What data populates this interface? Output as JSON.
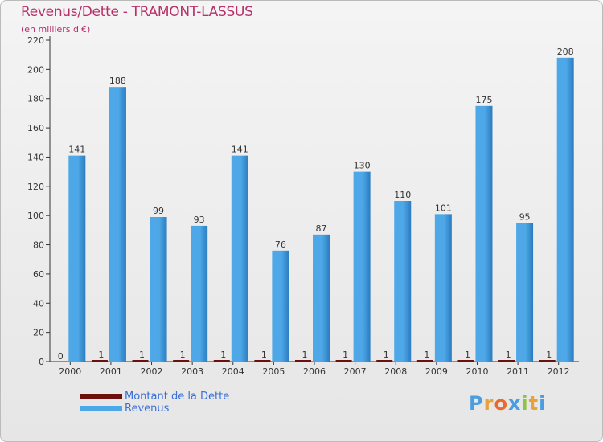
{
  "title": "Revenus/Dette - TRAMONT-LASSUS",
  "subtitle": "(en milliers d'€)",
  "legend": {
    "debt_label": "Montant de la Dette",
    "revenue_label": "Revenus"
  },
  "logo": {
    "text": "Proxiti",
    "letters": [
      "P",
      "r",
      "o",
      "x",
      "i",
      "t",
      "i"
    ],
    "colors": [
      "#4a9ee0",
      "#e8a23a",
      "#e86a2e",
      "#4a9ee0",
      "#8cc63f",
      "#e8a23a",
      "#4a9ee0"
    ]
  },
  "colors": {
    "debt": "#6b0f0f",
    "revenue": "#4ea7e6",
    "revenue_dark": "#2a7cc0",
    "title": "#b8306a",
    "legend_text": "#3a6fd8"
  },
  "chart_data": {
    "type": "bar",
    "title": "Revenus/Dette - TRAMONT-LASSUS",
    "ylabel": "(en milliers d'€)",
    "xlabel": "",
    "categories": [
      "2000",
      "2001",
      "2002",
      "2003",
      "2004",
      "2005",
      "2006",
      "2007",
      "2008",
      "2009",
      "2010",
      "2011",
      "2012"
    ],
    "series": [
      {
        "name": "Montant de la Dette",
        "values": [
          0,
          1,
          1,
          1,
          1,
          1,
          1,
          1,
          1,
          1,
          1,
          1,
          1
        ]
      },
      {
        "name": "Revenus",
        "values": [
          141,
          188,
          99,
          93,
          141,
          76,
          87,
          130,
          110,
          101,
          175,
          95,
          208
        ]
      }
    ],
    "ylim": [
      0,
      220
    ],
    "yticks": [
      0,
      20,
      40,
      60,
      80,
      100,
      120,
      140,
      160,
      180,
      200,
      220
    ],
    "grid": false,
    "legend_position": "bottom-left"
  }
}
